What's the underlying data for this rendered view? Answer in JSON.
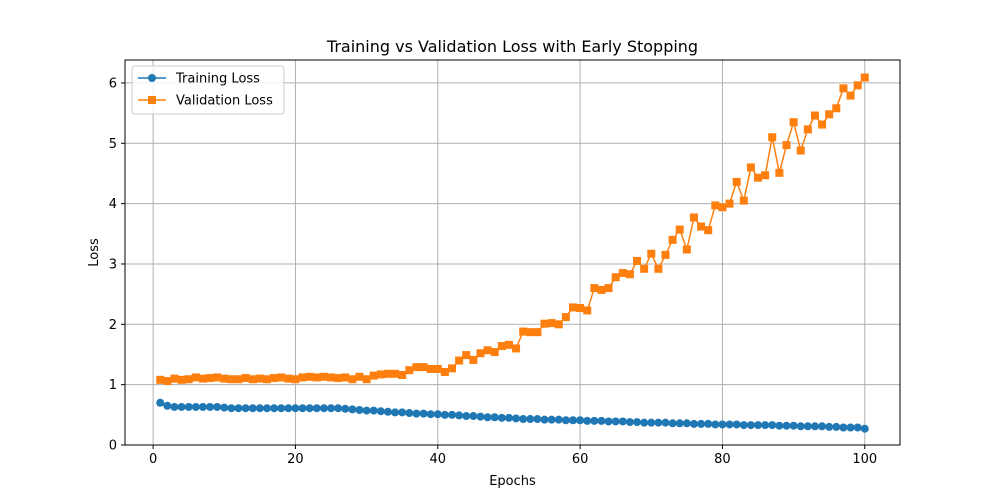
{
  "chart_data": {
    "type": "line",
    "title": "Training vs Validation Loss with Early Stopping",
    "xlabel": "Epochs",
    "ylabel": "Loss",
    "xlim": [
      -3.95,
      104.95
    ],
    "ylim": [
      0,
      6.38
    ],
    "xticks": [
      0,
      20,
      40,
      60,
      80,
      100
    ],
    "yticks": [
      0,
      1,
      2,
      3,
      4,
      5,
      6
    ],
    "grid": true,
    "legend_position": "top-left",
    "x": [
      1,
      2,
      3,
      4,
      5,
      6,
      7,
      8,
      9,
      10,
      11,
      12,
      13,
      14,
      15,
      16,
      17,
      18,
      19,
      20,
      21,
      22,
      23,
      24,
      25,
      26,
      27,
      28,
      29,
      30,
      31,
      32,
      33,
      34,
      35,
      36,
      37,
      38,
      39,
      40,
      41,
      42,
      43,
      44,
      45,
      46,
      47,
      48,
      49,
      50,
      51,
      52,
      53,
      54,
      55,
      56,
      57,
      58,
      59,
      60,
      61,
      62,
      63,
      64,
      65,
      66,
      67,
      68,
      69,
      70,
      71,
      72,
      73,
      74,
      75,
      76,
      77,
      78,
      79,
      80,
      81,
      82,
      83,
      84,
      85,
      86,
      87,
      88,
      89,
      90,
      91,
      92,
      93,
      94,
      95,
      96,
      97,
      98,
      99,
      100
    ],
    "series": [
      {
        "name": "Training Loss",
        "color": "#1f77b4",
        "marker": "circle",
        "values": [
          0.7,
          0.65,
          0.63,
          0.63,
          0.63,
          0.63,
          0.63,
          0.63,
          0.63,
          0.62,
          0.61,
          0.61,
          0.61,
          0.61,
          0.61,
          0.61,
          0.61,
          0.61,
          0.61,
          0.61,
          0.61,
          0.61,
          0.61,
          0.61,
          0.61,
          0.61,
          0.6,
          0.59,
          0.58,
          0.57,
          0.57,
          0.56,
          0.55,
          0.54,
          0.54,
          0.53,
          0.52,
          0.52,
          0.51,
          0.51,
          0.5,
          0.5,
          0.49,
          0.48,
          0.48,
          0.47,
          0.46,
          0.46,
          0.45,
          0.45,
          0.44,
          0.43,
          0.43,
          0.43,
          0.42,
          0.42,
          0.42,
          0.41,
          0.41,
          0.41,
          0.4,
          0.4,
          0.4,
          0.39,
          0.39,
          0.39,
          0.38,
          0.38,
          0.37,
          0.37,
          0.37,
          0.37,
          0.36,
          0.36,
          0.36,
          0.35,
          0.35,
          0.35,
          0.34,
          0.34,
          0.34,
          0.34,
          0.33,
          0.33,
          0.33,
          0.33,
          0.33,
          0.32,
          0.32,
          0.32,
          0.31,
          0.31,
          0.31,
          0.31,
          0.3,
          0.3,
          0.29,
          0.29,
          0.29,
          0.27
        ]
      },
      {
        "name": "Validation Loss",
        "color": "#ff7f0e",
        "marker": "square",
        "values": [
          1.08,
          1.06,
          1.1,
          1.08,
          1.09,
          1.12,
          1.1,
          1.11,
          1.12,
          1.1,
          1.09,
          1.09,
          1.11,
          1.09,
          1.1,
          1.09,
          1.11,
          1.12,
          1.1,
          1.09,
          1.12,
          1.13,
          1.12,
          1.13,
          1.12,
          1.11,
          1.12,
          1.09,
          1.13,
          1.09,
          1.15,
          1.17,
          1.18,
          1.18,
          1.16,
          1.24,
          1.29,
          1.29,
          1.26,
          1.26,
          1.21,
          1.27,
          1.4,
          1.49,
          1.41,
          1.52,
          1.57,
          1.54,
          1.64,
          1.66,
          1.6,
          1.88,
          1.87,
          1.87,
          2.01,
          2.02,
          2.0,
          2.12,
          2.28,
          2.27,
          2.23,
          2.6,
          2.57,
          2.6,
          2.78,
          2.85,
          2.83,
          3.05,
          2.92,
          3.17,
          2.92,
          3.15,
          3.4,
          3.57,
          3.24,
          3.77,
          3.62,
          3.56,
          3.97,
          3.94,
          4.0,
          4.36,
          4.05,
          4.6,
          4.43,
          4.47,
          5.1,
          4.51,
          4.97,
          5.35,
          4.88,
          5.23,
          5.46,
          5.31,
          5.48,
          5.58,
          5.91,
          5.79,
          5.96,
          6.09
        ]
      }
    ]
  }
}
